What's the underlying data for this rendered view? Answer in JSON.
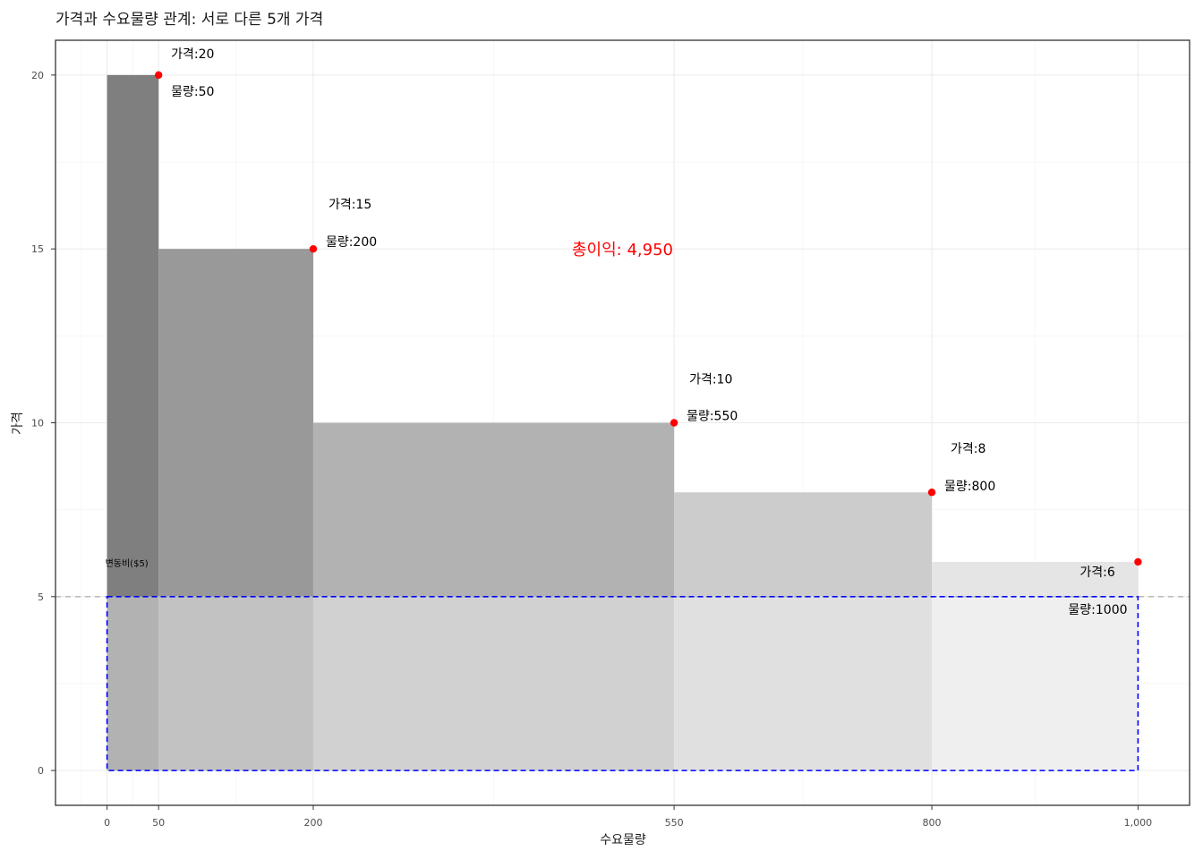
{
  "chart_data": {
    "type": "bar",
    "title": "가격과 수요물량 관계: 서로 다른 5개 가격",
    "xlabel": "수요물량",
    "ylabel": "가격",
    "xlim": [
      -50,
      1050
    ],
    "ylim": [
      -1,
      21
    ],
    "x_ticks": [
      0,
      50,
      200,
      550,
      800,
      1000
    ],
    "x_tick_labels": [
      "0",
      "50",
      "200",
      "550",
      "800",
      "1,000"
    ],
    "y_ticks": [
      0,
      5,
      10,
      15,
      20
    ],
    "y_tick_labels": [
      "0",
      "5",
      "10",
      "15",
      "20"
    ],
    "grid": true,
    "points": [
      {
        "quantity": 50,
        "price": 20,
        "price_label": "가격:20",
        "quantity_label": "물량:50"
      },
      {
        "quantity": 200,
        "price": 15,
        "price_label": "가격:15",
        "quantity_label": "물량:200"
      },
      {
        "quantity": 550,
        "price": 10,
        "price_label": "가격:10",
        "quantity_label": "물량:550"
      },
      {
        "quantity": 800,
        "price": 8,
        "price_label": "가격:8",
        "quantity_label": "물량:800"
      },
      {
        "quantity": 1000,
        "price": 6,
        "price_label": "가격:6",
        "quantity_label": "물량:1000"
      }
    ],
    "bars": [
      {
        "x_start": 0,
        "x_end": 50,
        "height": 20,
        "color": "#7f7f7f"
      },
      {
        "x_start": 50,
        "x_end": 200,
        "height": 15,
        "color": "#999999"
      },
      {
        "x_start": 200,
        "x_end": 550,
        "height": 10,
        "color": "#b2b2b2"
      },
      {
        "x_start": 550,
        "x_end": 800,
        "height": 8,
        "color": "#cccccc"
      },
      {
        "x_start": 800,
        "x_end": 1000,
        "height": 6,
        "color": "#e5e5e5"
      }
    ],
    "variable_cost": 5,
    "variable_cost_label": "변동비($5)",
    "total_profit_label": "총이익: 4,950",
    "total_profit_position": {
      "x": 500,
      "y": 15
    },
    "colors": {
      "point": "#ff0000",
      "profit_text": "#ff0000",
      "cost_box": "#0000ff",
      "cost_line": "#b3b3b3",
      "cost_overlay": "#ffffff"
    }
  }
}
